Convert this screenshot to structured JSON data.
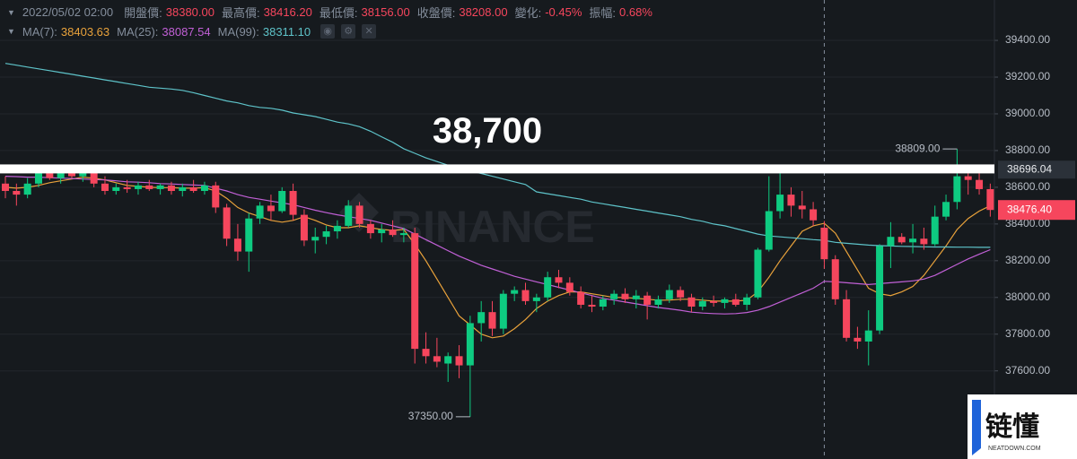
{
  "header": {
    "datetime": "2022/05/02 02:00",
    "fields": [
      {
        "label": "開盤價:",
        "value": "38380.00"
      },
      {
        "label": "最高價:",
        "value": "38416.20"
      },
      {
        "label": "最低價:",
        "value": "38156.00"
      },
      {
        "label": "收盤價:",
        "value": "38208.00"
      },
      {
        "label": "變化:",
        "value": "-0.45%"
      },
      {
        "label": "振幅:",
        "value": "0.68%"
      }
    ]
  },
  "chart_data": {
    "type": "candlestick",
    "open": [
      38620,
      38580,
      38560,
      38620,
      38680,
      38650,
      38690,
      38660,
      38690,
      38620,
      38580,
      38600,
      38590,
      38610,
      38590,
      38610,
      38580,
      38600,
      38580,
      38610,
      38490,
      38320,
      38250,
      38430,
      38500,
      38470,
      38580,
      38450,
      38310,
      38330,
      38360,
      38390,
      38500,
      38400,
      38350,
      38370,
      38340,
      38350,
      37720,
      37680,
      37640,
      37680,
      37630,
      37860,
      37920,
      37830,
      38020,
      38040,
      37980,
      38000,
      38110,
      38080,
      38030,
      37960,
      37950,
      37990,
      38020,
      37990,
      38010,
      37960,
      37990,
      38040,
      38000,
      37950,
      37980,
      37970,
      37990,
      37960,
      38000,
      38260,
      38470,
      38560,
      38500,
      38480,
      38380,
      38208,
      37990,
      37780,
      37760,
      37820,
      38280,
      38330,
      38300,
      38320,
      38290,
      38440,
      38520,
      38660,
      38640,
      38590
    ],
    "high": [
      38660,
      38620,
      38650,
      38700,
      38720,
      38710,
      38720,
      38720,
      38710,
      38660,
      38620,
      38640,
      38630,
      38640,
      38620,
      38630,
      38620,
      38640,
      38630,
      38630,
      38510,
      38400,
      38460,
      38520,
      38560,
      38600,
      38620,
      38480,
      38380,
      38390,
      38420,
      38530,
      38520,
      38420,
      38400,
      38420,
      38380,
      38380,
      37810,
      37780,
      37700,
      37740,
      37900,
      37980,
      37980,
      38040,
      38060,
      38080,
      38020,
      38140,
      38150,
      38110,
      38060,
      38010,
      38010,
      38040,
      38050,
      38040,
      38030,
      38010,
      38070,
      38060,
      38020,
      38000,
      38010,
      38000,
      38020,
      38020,
      38270,
      38660,
      38680,
      38600,
      38580,
      38520,
      38416.2,
      38230,
      38040,
      37840,
      37930,
      38290,
      38410,
      38350,
      38400,
      38380,
      38500,
      38560,
      38809,
      38720,
      38700,
      38620
    ],
    "low": [
      38540,
      38500,
      38540,
      38600,
      38640,
      38620,
      38650,
      38630,
      38600,
      38560,
      38560,
      38570,
      38560,
      38580,
      38560,
      38560,
      38550,
      38570,
      38560,
      38460,
      38280,
      38200,
      38140,
      38400,
      38420,
      38460,
      38420,
      38280,
      38240,
      38290,
      38320,
      38380,
      38380,
      38320,
      38300,
      38330,
      38300,
      37640,
      37640,
      37620,
      37540,
      37560,
      37350,
      37760,
      37790,
      37800,
      37980,
      37960,
      37920,
      37980,
      38050,
      38010,
      37940,
      37920,
      37930,
      37960,
      37970,
      37940,
      37880,
      37940,
      37970,
      37980,
      37920,
      37930,
      37950,
      37940,
      37950,
      37930,
      37990,
      38250,
      38430,
      38440,
      38430,
      38390,
      38156,
      37960,
      37760,
      37720,
      37630,
      37800,
      38160,
      38290,
      38240,
      38260,
      38280,
      38420,
      38480,
      38560,
      38560,
      38440
    ],
    "close": [
      38580,
      38560,
      38620,
      38680,
      38650,
      38690,
      38660,
      38690,
      38620,
      38580,
      38600,
      38590,
      38610,
      38590,
      38610,
      38580,
      38600,
      38580,
      38610,
      38490,
      38320,
      38250,
      38430,
      38500,
      38470,
      38580,
      38450,
      38310,
      38330,
      38360,
      38390,
      38500,
      38400,
      38350,
      38370,
      38340,
      38350,
      37720,
      37680,
      37650,
      37680,
      37630,
      37860,
      37920,
      37830,
      38020,
      38040,
      37980,
      38000,
      38110,
      38080,
      38030,
      37960,
      37950,
      37990,
      38020,
      37990,
      38010,
      37960,
      37990,
      38040,
      38000,
      37950,
      37980,
      37970,
      37990,
      37960,
      38000,
      38260,
      38470,
      38560,
      38500,
      38480,
      38420,
      38208,
      37990,
      37780,
      37760,
      37820,
      38280,
      38330,
      38300,
      38320,
      38290,
      38440,
      38520,
      38660,
      38640,
      38590,
      38476.4
    ],
    "up_color": "#0ecb81",
    "down_color": "#f6465d",
    "series": [
      {
        "name": "MA(7):",
        "legend_value": "38403.63",
        "color": "#e9a23b",
        "values": [
          38600,
          38595,
          38600,
          38610,
          38625,
          38635,
          38645,
          38655,
          38650,
          38640,
          38625,
          38610,
          38605,
          38600,
          38598,
          38598,
          38595,
          38595,
          38598,
          38580,
          38540,
          38490,
          38460,
          38440,
          38420,
          38410,
          38420,
          38440,
          38420,
          38395,
          38380,
          38380,
          38390,
          38380,
          38370,
          38365,
          38370,
          38290,
          38200,
          38100,
          38000,
          37900,
          37850,
          37800,
          37780,
          37790,
          37830,
          37880,
          37940,
          37980,
          38010,
          38030,
          38030,
          38020,
          38010,
          38000,
          38000,
          37995,
          37990,
          37985,
          37985,
          37990,
          37990,
          37985,
          37980,
          37980,
          37980,
          37985,
          38030,
          38110,
          38200,
          38280,
          38360,
          38390,
          38403.63,
          38350,
          38250,
          38150,
          38050,
          38020,
          38010,
          38030,
          38060,
          38120,
          38200,
          38280,
          38370,
          38430,
          38470,
          38500
        ]
      },
      {
        "name": "MA(25):",
        "legend_value": "38087.54",
        "color": "#c160d6",
        "values": [
          38660,
          38658,
          38655,
          38655,
          38652,
          38650,
          38648,
          38645,
          38642,
          38640,
          38635,
          38630,
          38628,
          38625,
          38620,
          38618,
          38615,
          38612,
          38610,
          38595,
          38580,
          38560,
          38545,
          38535,
          38525,
          38515,
          38505,
          38490,
          38475,
          38462,
          38450,
          38440,
          38430,
          38420,
          38405,
          38390,
          38375,
          38345,
          38315,
          38285,
          38255,
          38225,
          38200,
          38175,
          38155,
          38135,
          38115,
          38100,
          38085,
          38070,
          38055,
          38040,
          38025,
          38010,
          37995,
          37985,
          37975,
          37965,
          37955,
          37945,
          37938,
          37930,
          37920,
          37915,
          37912,
          37910,
          37912,
          37918,
          37930,
          37950,
          37975,
          38000,
          38025,
          38050,
          38087.54,
          38085,
          38080,
          38075,
          38070,
          38075,
          38080,
          38085,
          38090,
          38100,
          38120,
          38150,
          38180,
          38210,
          38235,
          38260
        ]
      },
      {
        "name": "MA(99):",
        "legend_value": "38311.10",
        "color": "#5ec3c9",
        "values": [
          39275,
          39265,
          39255,
          39245,
          39235,
          39225,
          39215,
          39205,
          39195,
          39185,
          39175,
          39165,
          39155,
          39145,
          39140,
          39135,
          39128,
          39115,
          39100,
          39085,
          39070,
          39060,
          39045,
          39035,
          39030,
          39020,
          39005,
          38995,
          38985,
          38970,
          38955,
          38945,
          38930,
          38905,
          38875,
          38845,
          38810,
          38785,
          38760,
          38740,
          38720,
          38700,
          38690,
          38675,
          38660,
          38645,
          38630,
          38615,
          38575,
          38565,
          38555,
          38545,
          38535,
          38520,
          38510,
          38500,
          38490,
          38480,
          38470,
          38460,
          38450,
          38440,
          38425,
          38415,
          38400,
          38390,
          38375,
          38360,
          38345,
          38335,
          38330,
          38325,
          38320,
          38315,
          38311.1,
          38300,
          38295,
          38290,
          38285,
          38282,
          38280,
          38278,
          38277,
          38276,
          38275,
          38275,
          38274,
          38274,
          38273,
          38273
        ]
      }
    ],
    "ylim": [
      37120,
      39620
    ],
    "yticks": [
      {
        "value": 37600,
        "label": "37600.00"
      },
      {
        "value": 37800,
        "label": "37800.00"
      },
      {
        "value": 38000,
        "label": "38000.00"
      },
      {
        "value": 38200,
        "label": "38200.00"
      },
      {
        "value": 38400,
        "label": "38400.00"
      },
      {
        "value": 38600,
        "label": "38600.00"
      },
      {
        "value": 38800,
        "label": "38800.00"
      },
      {
        "value": 39000,
        "label": "39000.00"
      },
      {
        "value": 39200,
        "label": "39200.00"
      },
      {
        "value": 39400,
        "label": "39400.00"
      }
    ],
    "grid": true,
    "high_annotation": {
      "value": 38809,
      "label": "38809.00"
    },
    "low_annotation": {
      "value": 37350,
      "label": "37350.00"
    },
    "last_price": {
      "value": 38476.4,
      "label": "38476.40"
    },
    "crosshair": {
      "value": 38696.04,
      "label": "38696.04"
    },
    "reference_line": {
      "value": 38700,
      "label": "38,700"
    },
    "watermark": "BINANCE"
  },
  "logo": {
    "text": "链懂",
    "url": "NEATDOWN.COM"
  }
}
